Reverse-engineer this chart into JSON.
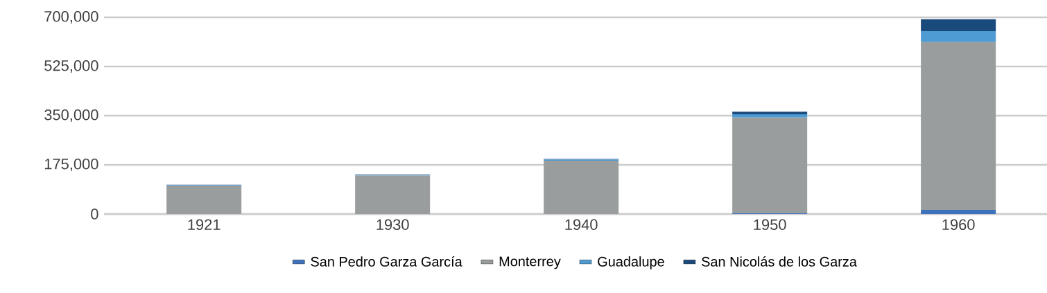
{
  "chart_data": {
    "type": "bar",
    "stacked": true,
    "categories": [
      "1921",
      "1930",
      "1940",
      "1950",
      "1960"
    ],
    "series": [
      {
        "name": "San Pedro Garza García",
        "color": "#3f72be",
        "values": [
          null,
          null,
          null,
          3000,
          15000
        ]
      },
      {
        "name": "Monterrey",
        "color": "#999d9e",
        "values": [
          101000,
          137000,
          190000,
          340000,
          597000
        ]
      },
      {
        "name": "Guadalupe",
        "color": "#4e9bd4",
        "values": [
          2000,
          2000,
          4000,
          12000,
          39000
        ]
      },
      {
        "name": "San Nicolás de los Garza",
        "color": "#1a4a7c",
        "values": [
          1000,
          2000,
          2000,
          9000,
          42000
        ]
      }
    ],
    "ylim": [
      0,
      700000
    ],
    "yticks": [
      {
        "value": 0,
        "label": "0"
      },
      {
        "value": 175000,
        "label": "175,000"
      },
      {
        "value": 350000,
        "label": "350,000"
      },
      {
        "value": 525000,
        "label": "525,000"
      },
      {
        "value": 700000,
        "label": "700,000"
      }
    ],
    "grid": "y",
    "legend": "bottom"
  }
}
